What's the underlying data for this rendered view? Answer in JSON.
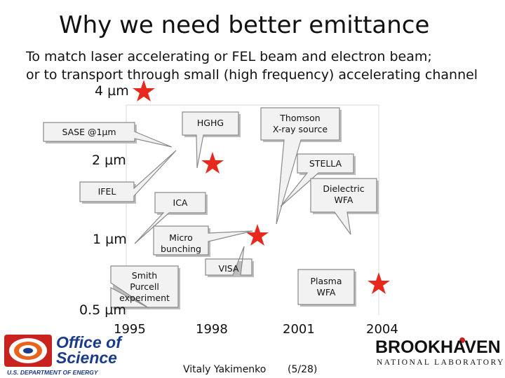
{
  "slide": {
    "title": "Why we need better emittance",
    "subtitle_line1": "To match laser accelerating or FEL beam and electron beam;",
    "subtitle_line2": "or to transport through small (high frequency) accelerating channel"
  },
  "y_axis_labels": [
    "4 µm",
    "2 µm",
    "1 µm",
    "0.5 µm"
  ],
  "x_axis_labels": [
    "1995",
    "1998",
    "2001",
    "2004"
  ],
  "callouts": {
    "hghg": "HGHG",
    "thomson": "Thomson\nX-ray source",
    "sase": "SASE @1µm",
    "stella": "STELLA",
    "ifel": "IFEL",
    "dielectric": "Dielectric\nWFA",
    "ica": "ICA",
    "micro": "Micro\nbunching",
    "smith": "Smith\nPurcell\nexperiment",
    "visa": "VISA",
    "plasma": "Plasma\nWFA"
  },
  "footer": {
    "author": "Vitaly Yakimenko",
    "page": "(5/28)"
  },
  "logos": {
    "doe_name": "Office of Science",
    "doe_dept": "U.S. DEPARTMENT OF ENERGY",
    "bnl_name": "BROOKHAVEN",
    "bnl_sub": "NATIONAL LABORATORY"
  },
  "colors": {
    "star": "#e8281c",
    "doe_blue": "#1b3a8c",
    "doe_orange": "#e8641c",
    "doe_red": "#c8231e"
  }
}
